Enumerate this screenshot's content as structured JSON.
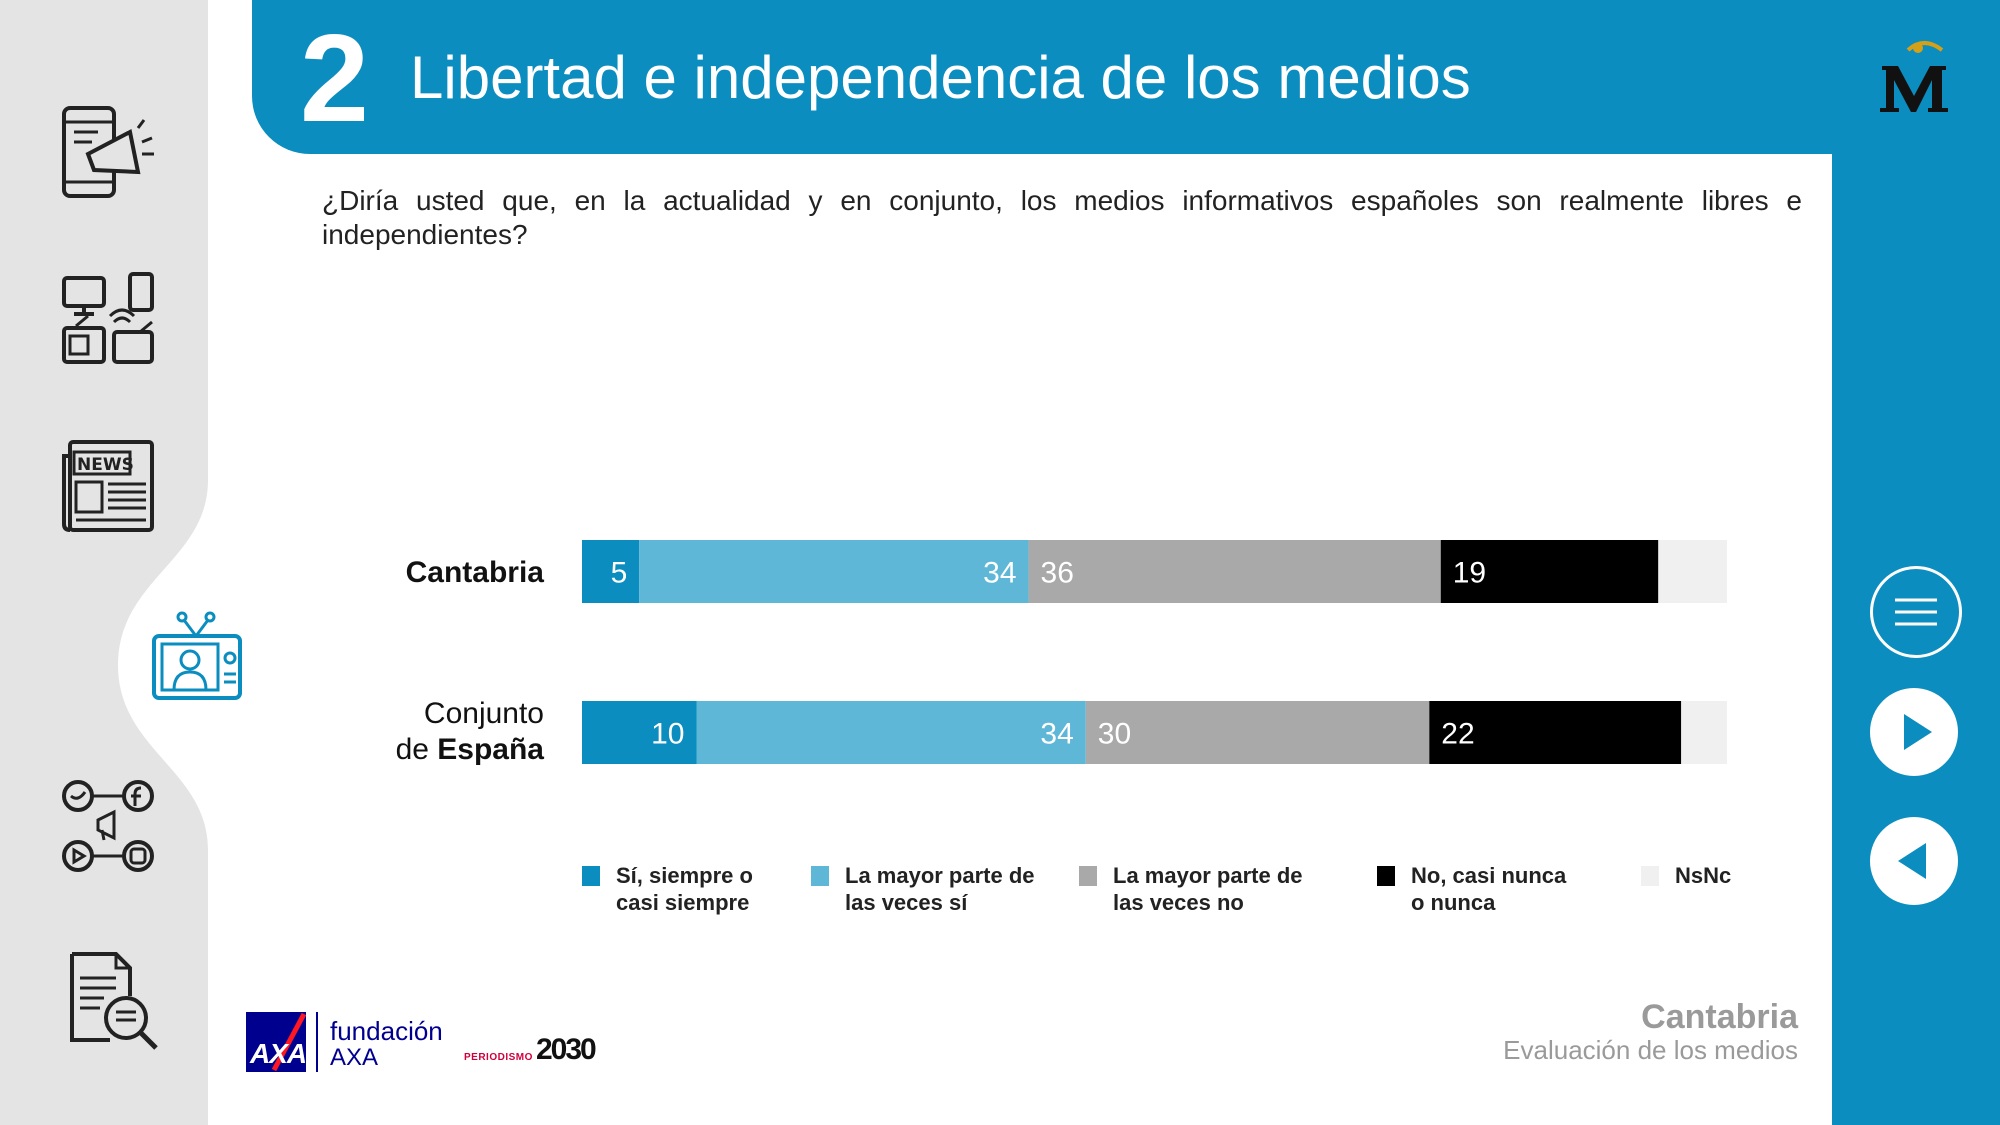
{
  "header": {
    "section_number": "2",
    "title": "Libertad e independencia de los medios"
  },
  "question": "¿Diría usted que, en la actualidad y en conjunto, los medios informativos españoles son realmente libres e independientes?",
  "sidebar": {
    "items": [
      {
        "icon": "mobile-megaphone-icon"
      },
      {
        "icon": "devices-icon"
      },
      {
        "icon": "newspaper-icon",
        "text": "NEWS"
      },
      {
        "icon": "tv-presenter-icon",
        "active": true
      },
      {
        "icon": "social-media-icon"
      },
      {
        "icon": "document-search-icon"
      }
    ]
  },
  "row_labels": {
    "cantabria": "Cantabria",
    "espana_line1": "Conjunto",
    "espana_de": "de",
    "espana_bold": "España"
  },
  "chart_data": {
    "type": "bar",
    "orientation": "horizontal",
    "stacked": true,
    "categories": [
      "Cantabria",
      "Conjunto de España"
    ],
    "series": [
      {
        "name": "Sí, siempre o casi siempre",
        "values": [
          5,
          10
        ],
        "color": "#0b8dbf",
        "label_color": "#ffffff"
      },
      {
        "name": "La mayor parte de las veces sí",
        "values": [
          34,
          34
        ],
        "color": "#5eb7d7",
        "label_color": "#ffffff"
      },
      {
        "name": "La mayor parte de las veces no",
        "values": [
          36,
          30
        ],
        "color": "#aaa9a9",
        "label_color": "#ffffff"
      },
      {
        "name": "No, casi nunca o nunca",
        "values": [
          19,
          22
        ],
        "color": "#000000",
        "label_color": "#ffffff"
      },
      {
        "name": "NsNc",
        "values": [
          6,
          4
        ],
        "color": "#f0f0f0",
        "label_color": "#000000",
        "show_label": false
      }
    ],
    "xlim": [
      0,
      100
    ],
    "legend_position": "bottom",
    "grid": false
  },
  "legend": [
    {
      "label": "Sí, siempre o\ncasi siempre",
      "color": "#0b8dbf"
    },
    {
      "label": "La mayor parte de\nlas veces sí",
      "color": "#5eb7d7"
    },
    {
      "label": "La mayor parte de\nlas veces no",
      "color": "#aaa9a9"
    },
    {
      "label": "No, casi nunca\no nunca",
      "color": "#000000"
    },
    {
      "label": "NsNc",
      "color": "#f0f0f0"
    }
  ],
  "footer": {
    "region": "Cantabria",
    "subtitle": "Evaluación de los medios",
    "axa_logo": "AXA",
    "fundacion_line1": "fundación",
    "fundacion_line2": "AXA",
    "periodismo_small": "PERIODISMO",
    "periodismo_year": "2030"
  },
  "nav_buttons": [
    {
      "icon": "menu-icon"
    },
    {
      "icon": "next-arrow-icon"
    },
    {
      "icon": "previous-arrow-icon"
    }
  ],
  "colors": {
    "accent": "#0b8dbf",
    "rail_gray": "#e4e4e4"
  }
}
